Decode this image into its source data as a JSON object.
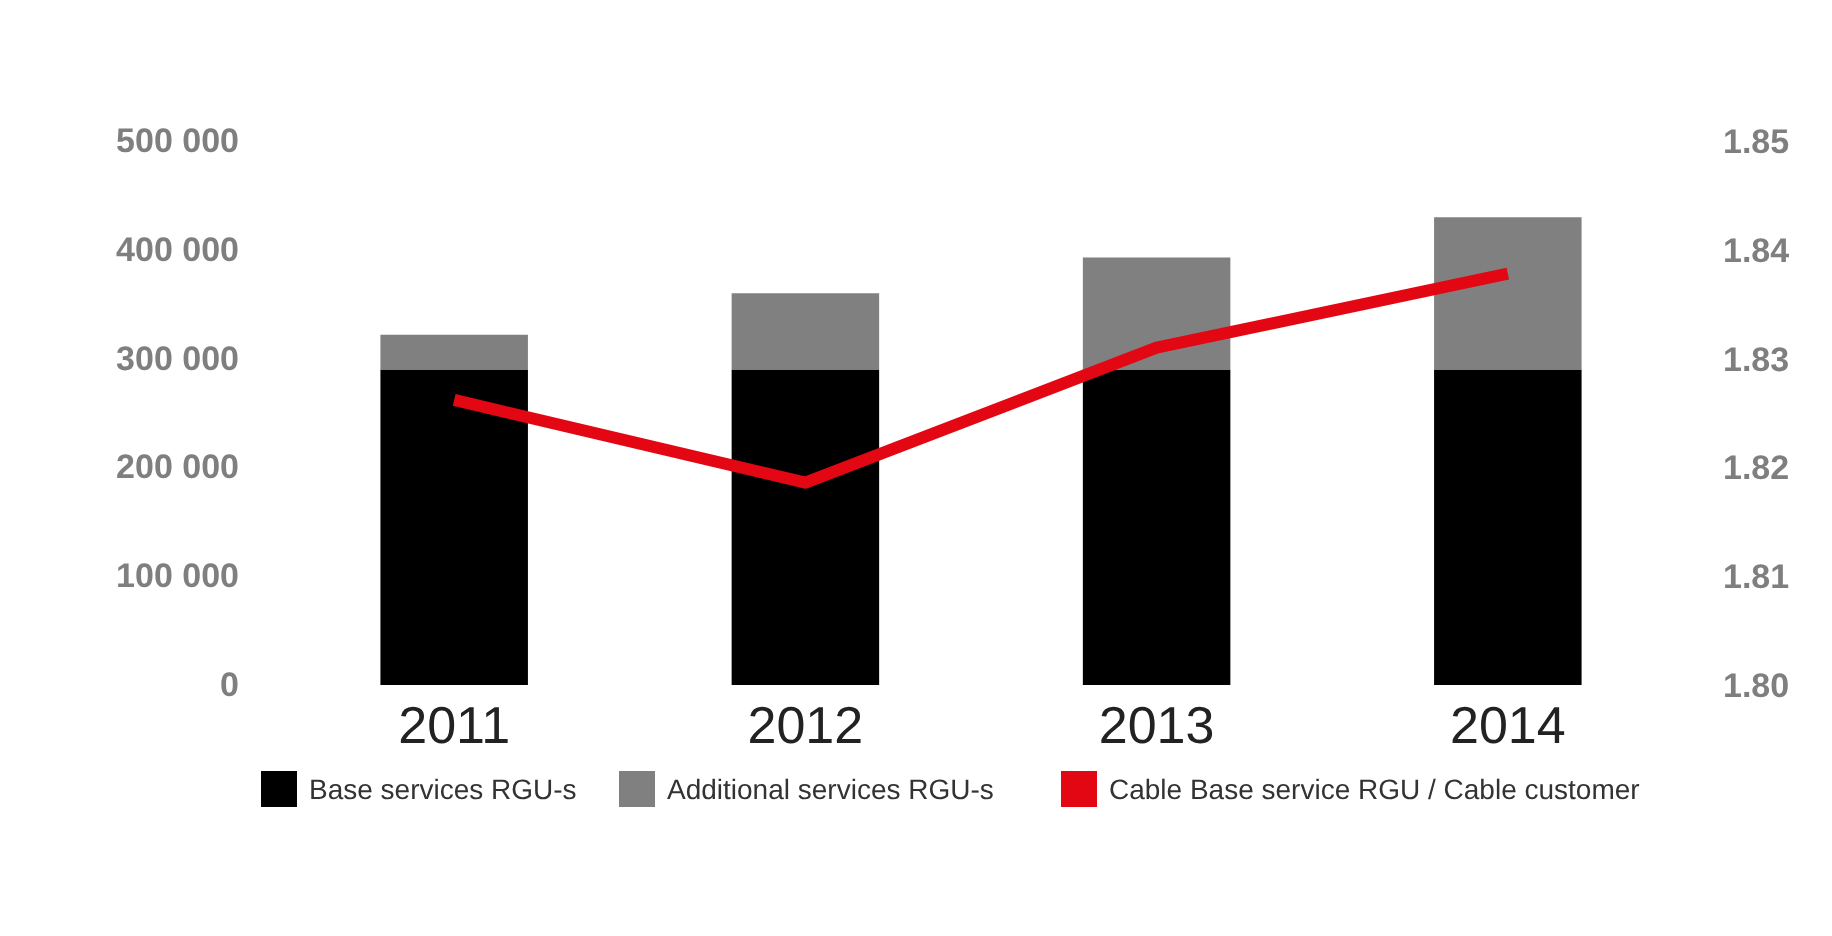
{
  "chart_data": {
    "type": "bar",
    "stacked": true,
    "categories": [
      "2011",
      "2012",
      "2013",
      "2014"
    ],
    "series": [
      {
        "name": "Base services RGU-s",
        "color": "#000000",
        "values": [
          290000,
          290000,
          290000,
          290000
        ]
      },
      {
        "name": "Additional services RGU-s",
        "color": "#808080",
        "values": [
          32000,
          70000,
          103000,
          140000
        ]
      },
      {
        "name": "Cable Base service RGU / Cable customer",
        "color": "#e30613",
        "type": "line",
        "axis": "y2",
        "values": [
          1.8262,
          1.8186,
          1.831,
          1.8378
        ]
      }
    ],
    "ylim": [
      0,
      500000
    ],
    "yticks": [
      {
        "value": 0,
        "label": "0"
      },
      {
        "value": 100000,
        "label": "100 000"
      },
      {
        "value": 200000,
        "label": "200 000"
      },
      {
        "value": 300000,
        "label": "300 000"
      },
      {
        "value": 400000,
        "label": "400 000"
      },
      {
        "value": 500000,
        "label": "500 000"
      }
    ],
    "y2lim": [
      1.8,
      1.85
    ],
    "y2ticks": [
      {
        "value": 1.8,
        "label": "1.80"
      },
      {
        "value": 1.81,
        "label": "1.81"
      },
      {
        "value": 1.82,
        "label": "1.82"
      },
      {
        "value": 1.83,
        "label": "1.83"
      },
      {
        "value": 1.84,
        "label": "1.84"
      },
      {
        "value": 1.85,
        "label": "1.85"
      }
    ],
    "grid": false,
    "legend": "bottom",
    "marker": "none",
    "line_style": "solid"
  }
}
